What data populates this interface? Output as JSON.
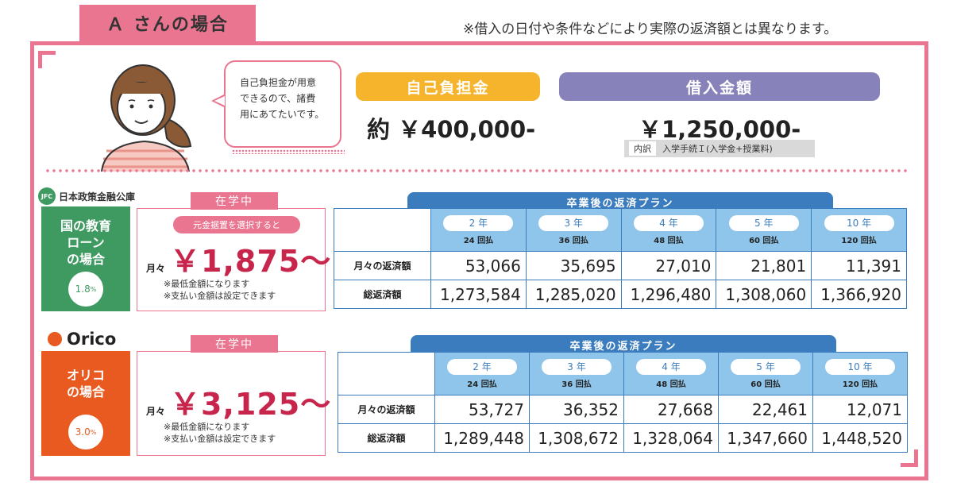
{
  "header": {
    "title": "Ａ さんの場合",
    "disclaimer": "※借入の日付や条件などにより実際の返済額とは異なります。"
  },
  "profile": {
    "bubble_lines": [
      "自己負担金が用意",
      "できるので、諸費",
      "用にあてたいです。"
    ],
    "self_pay_label": "自己負担金",
    "self_pay_amount": "約 ￥400,000-",
    "loan_label": "借入金額",
    "loan_amount": "￥1,250,000-",
    "breakdown_tag": "内訳",
    "breakdown_text": "入学手続Ｉ(入学金+授業料)"
  },
  "colors": {
    "pink": "#e97590",
    "jfc_green": "#3f9a62",
    "orico_orange": "#e85a1f",
    "plan_blue": "#3a7cbd",
    "yellow": "#f5b42c",
    "purple": "#8882bb",
    "red": "#c8254c"
  },
  "sections": [
    {
      "brand_logo": "JFC",
      "brand_name": "日本政策金融公庫",
      "side_lines": [
        "国の教育",
        "ローン",
        "の場合"
      ],
      "rate": "1.8",
      "rate_unit": "%",
      "study_tab": "在学中",
      "principal_note": "元金据置を選択すると",
      "monthly_label": "月々",
      "monthly_value": "￥1,875〜",
      "notes": [
        "※最低金額になります",
        "※支払い金額は設定できます"
      ],
      "plan_title": "卒業後の返済プラン",
      "columns": [
        {
          "years": "2 年",
          "count": "24 回払"
        },
        {
          "years": "3 年",
          "count": "36 回払"
        },
        {
          "years": "4 年",
          "count": "48 回払"
        },
        {
          "years": "5 年",
          "count": "60 回払"
        },
        {
          "years": "10 年",
          "count": "120 回払"
        }
      ],
      "rows": [
        {
          "label": "月々の返済額",
          "values": [
            "53,066",
            "35,695",
            "27,010",
            "21,801",
            "11,391"
          ]
        },
        {
          "label": "総返済額",
          "values": [
            "1,273,584",
            "1,285,020",
            "1,296,480",
            "1,308,060",
            "1,366,920"
          ]
        }
      ]
    },
    {
      "brand_name": "Orico",
      "side_lines": [
        "オリコ",
        "の場合"
      ],
      "rate": "3.0",
      "rate_unit": "%",
      "study_tab": "在学中",
      "monthly_label": "月々",
      "monthly_value": "￥3,125〜",
      "notes": [
        "※最低金額になります",
        "※支払い金額は設定できます"
      ],
      "plan_title": "卒業後の返済プラン",
      "columns": [
        {
          "years": "2 年",
          "count": "24 回払"
        },
        {
          "years": "3 年",
          "count": "36 回払"
        },
        {
          "years": "4 年",
          "count": "48 回払"
        },
        {
          "years": "5 年",
          "count": "60 回払"
        },
        {
          "years": "10 年",
          "count": "120 回払"
        }
      ],
      "rows": [
        {
          "label": "月々の返済額",
          "values": [
            "53,727",
            "36,352",
            "27,668",
            "22,461",
            "12,071"
          ]
        },
        {
          "label": "総返済額",
          "values": [
            "1,289,448",
            "1,308,672",
            "1,328,064",
            "1,347,660",
            "1,448,520"
          ]
        }
      ]
    }
  ]
}
